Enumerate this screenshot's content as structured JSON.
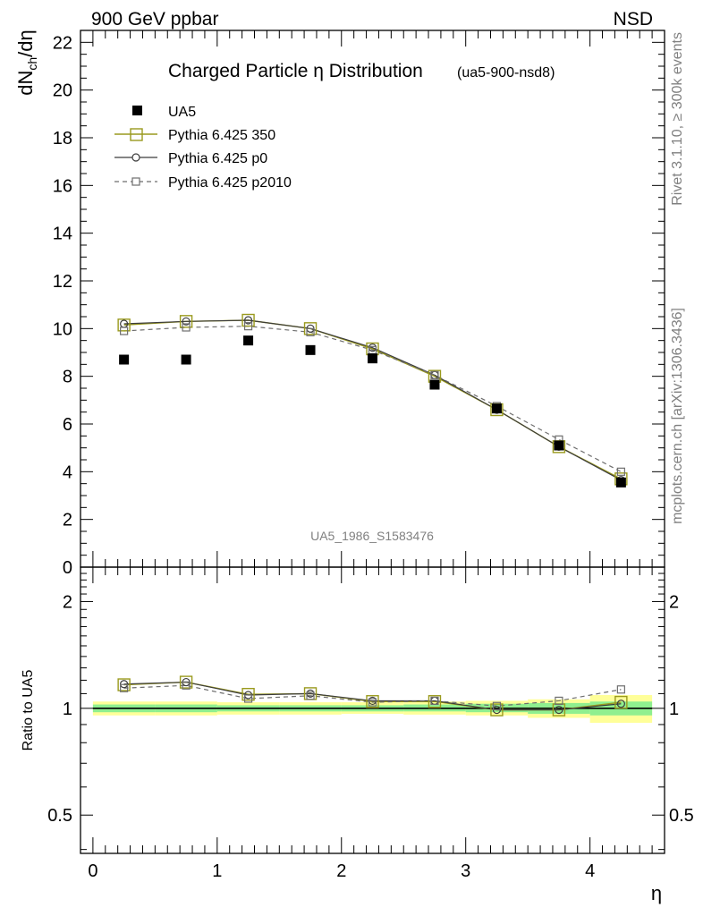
{
  "header": {
    "left": "900 GeV ppbar",
    "right": "NSD"
  },
  "side_labels": {
    "rivet": "Rivet 3.1.10, ≥ 300k events",
    "mcplots": "mcplots.cern.ch [arXiv:1306.3436]"
  },
  "watermark": "UA5_1986_S1583476",
  "colors": {
    "pythia350": "#9a9a1e",
    "p0": "#3c3c3c",
    "p2010": "#6e6e6e",
    "band_yellow": "#ffff99",
    "band_green": "#8fef8f"
  },
  "chart_data": [
    {
      "type": "scatter",
      "title": "Charged Particle η Distribution",
      "subtitle": "(ua5-900-nsd8)",
      "xlabel": "",
      "ylabel": "dN_ch/dη",
      "xlim": [
        -0.1,
        4.6
      ],
      "ylim": [
        0,
        22.5
      ],
      "y_ticks": [
        "0",
        "2",
        "4",
        "6",
        "8",
        "10",
        "12",
        "14",
        "16",
        "18",
        "20",
        "22"
      ],
      "legend_position": "top-left",
      "series": [
        {
          "name": "UA5",
          "marker": "filled-square",
          "line": "none",
          "x": [
            0.25,
            0.75,
            1.25,
            1.75,
            2.25,
            2.75,
            3.25,
            3.75,
            4.25
          ],
          "y": [
            8.7,
            8.7,
            9.5,
            9.1,
            8.75,
            7.65,
            6.65,
            5.1,
            3.55
          ]
        },
        {
          "name": "Pythia 6.425 350",
          "marker": "open-square",
          "line": "solid",
          "x": [
            0.25,
            0.75,
            1.25,
            1.75,
            2.25,
            2.75,
            3.25,
            3.75,
            4.25
          ],
          "y": [
            10.15,
            10.3,
            10.35,
            10.0,
            9.15,
            8.0,
            6.6,
            5.05,
            3.7
          ]
        },
        {
          "name": "Pythia 6.425 p0",
          "marker": "open-circle",
          "line": "solid",
          "x": [
            0.25,
            0.75,
            1.25,
            1.75,
            2.25,
            2.75,
            3.25,
            3.75,
            4.25
          ],
          "y": [
            10.2,
            10.3,
            10.35,
            10.0,
            9.2,
            8.05,
            6.6,
            5.05,
            3.65
          ]
        },
        {
          "name": "Pythia 6.425 p2010",
          "marker": "small-open-square",
          "line": "dashed",
          "x": [
            0.25,
            0.75,
            1.25,
            1.75,
            2.25,
            2.75,
            3.25,
            3.75,
            4.25
          ],
          "y": [
            9.9,
            10.05,
            10.1,
            9.85,
            9.1,
            8.05,
            6.75,
            5.35,
            4.0
          ]
        }
      ]
    },
    {
      "type": "scatter",
      "xlabel": "η",
      "ylabel": "Ratio to UA5",
      "xlim": [
        -0.1,
        4.6
      ],
      "ylim": [
        0.39,
        2.5
      ],
      "scale_y": "log",
      "x_ticks": [
        "0",
        "1",
        "2",
        "3",
        "4"
      ],
      "y_ticks": [
        "0.5",
        "1",
        "2"
      ],
      "reference_line": 1.0,
      "bands": {
        "x_edges": [
          0,
          0.5,
          1.0,
          1.5,
          2.0,
          2.5,
          3.0,
          3.5,
          4.0,
          4.5
        ],
        "yellow_low": [
          0.955,
          0.955,
          0.96,
          0.96,
          0.965,
          0.96,
          0.955,
          0.94,
          0.91
        ],
        "yellow_high": [
          1.045,
          1.045,
          1.04,
          1.04,
          1.04,
          1.045,
          1.05,
          1.06,
          1.09
        ],
        "green_low": [
          0.975,
          0.975,
          0.98,
          0.98,
          0.98,
          0.98,
          0.975,
          0.965,
          0.955
        ],
        "green_high": [
          1.025,
          1.025,
          1.02,
          1.02,
          1.02,
          1.025,
          1.03,
          1.035,
          1.045
        ]
      },
      "series": [
        {
          "name": "Pythia 6.425 350",
          "x": [
            0.25,
            0.75,
            1.25,
            1.75,
            2.25,
            2.75,
            3.25,
            3.75,
            4.25
          ],
          "y": [
            1.165,
            1.185,
            1.095,
            1.1,
            1.045,
            1.045,
            0.99,
            0.99,
            1.04
          ]
        },
        {
          "name": "Pythia 6.425 p0",
          "x": [
            0.25,
            0.75,
            1.25,
            1.75,
            2.25,
            2.75,
            3.25,
            3.75,
            4.25
          ],
          "y": [
            1.17,
            1.185,
            1.09,
            1.1,
            1.05,
            1.05,
            0.99,
            0.99,
            1.03
          ]
        },
        {
          "name": "Pythia 6.425 p2010",
          "x": [
            0.25,
            0.75,
            1.25,
            1.75,
            2.25,
            2.75,
            3.25,
            3.75,
            4.25
          ],
          "y": [
            1.14,
            1.16,
            1.065,
            1.085,
            1.04,
            1.05,
            1.015,
            1.05,
            1.13
          ]
        }
      ]
    }
  ]
}
